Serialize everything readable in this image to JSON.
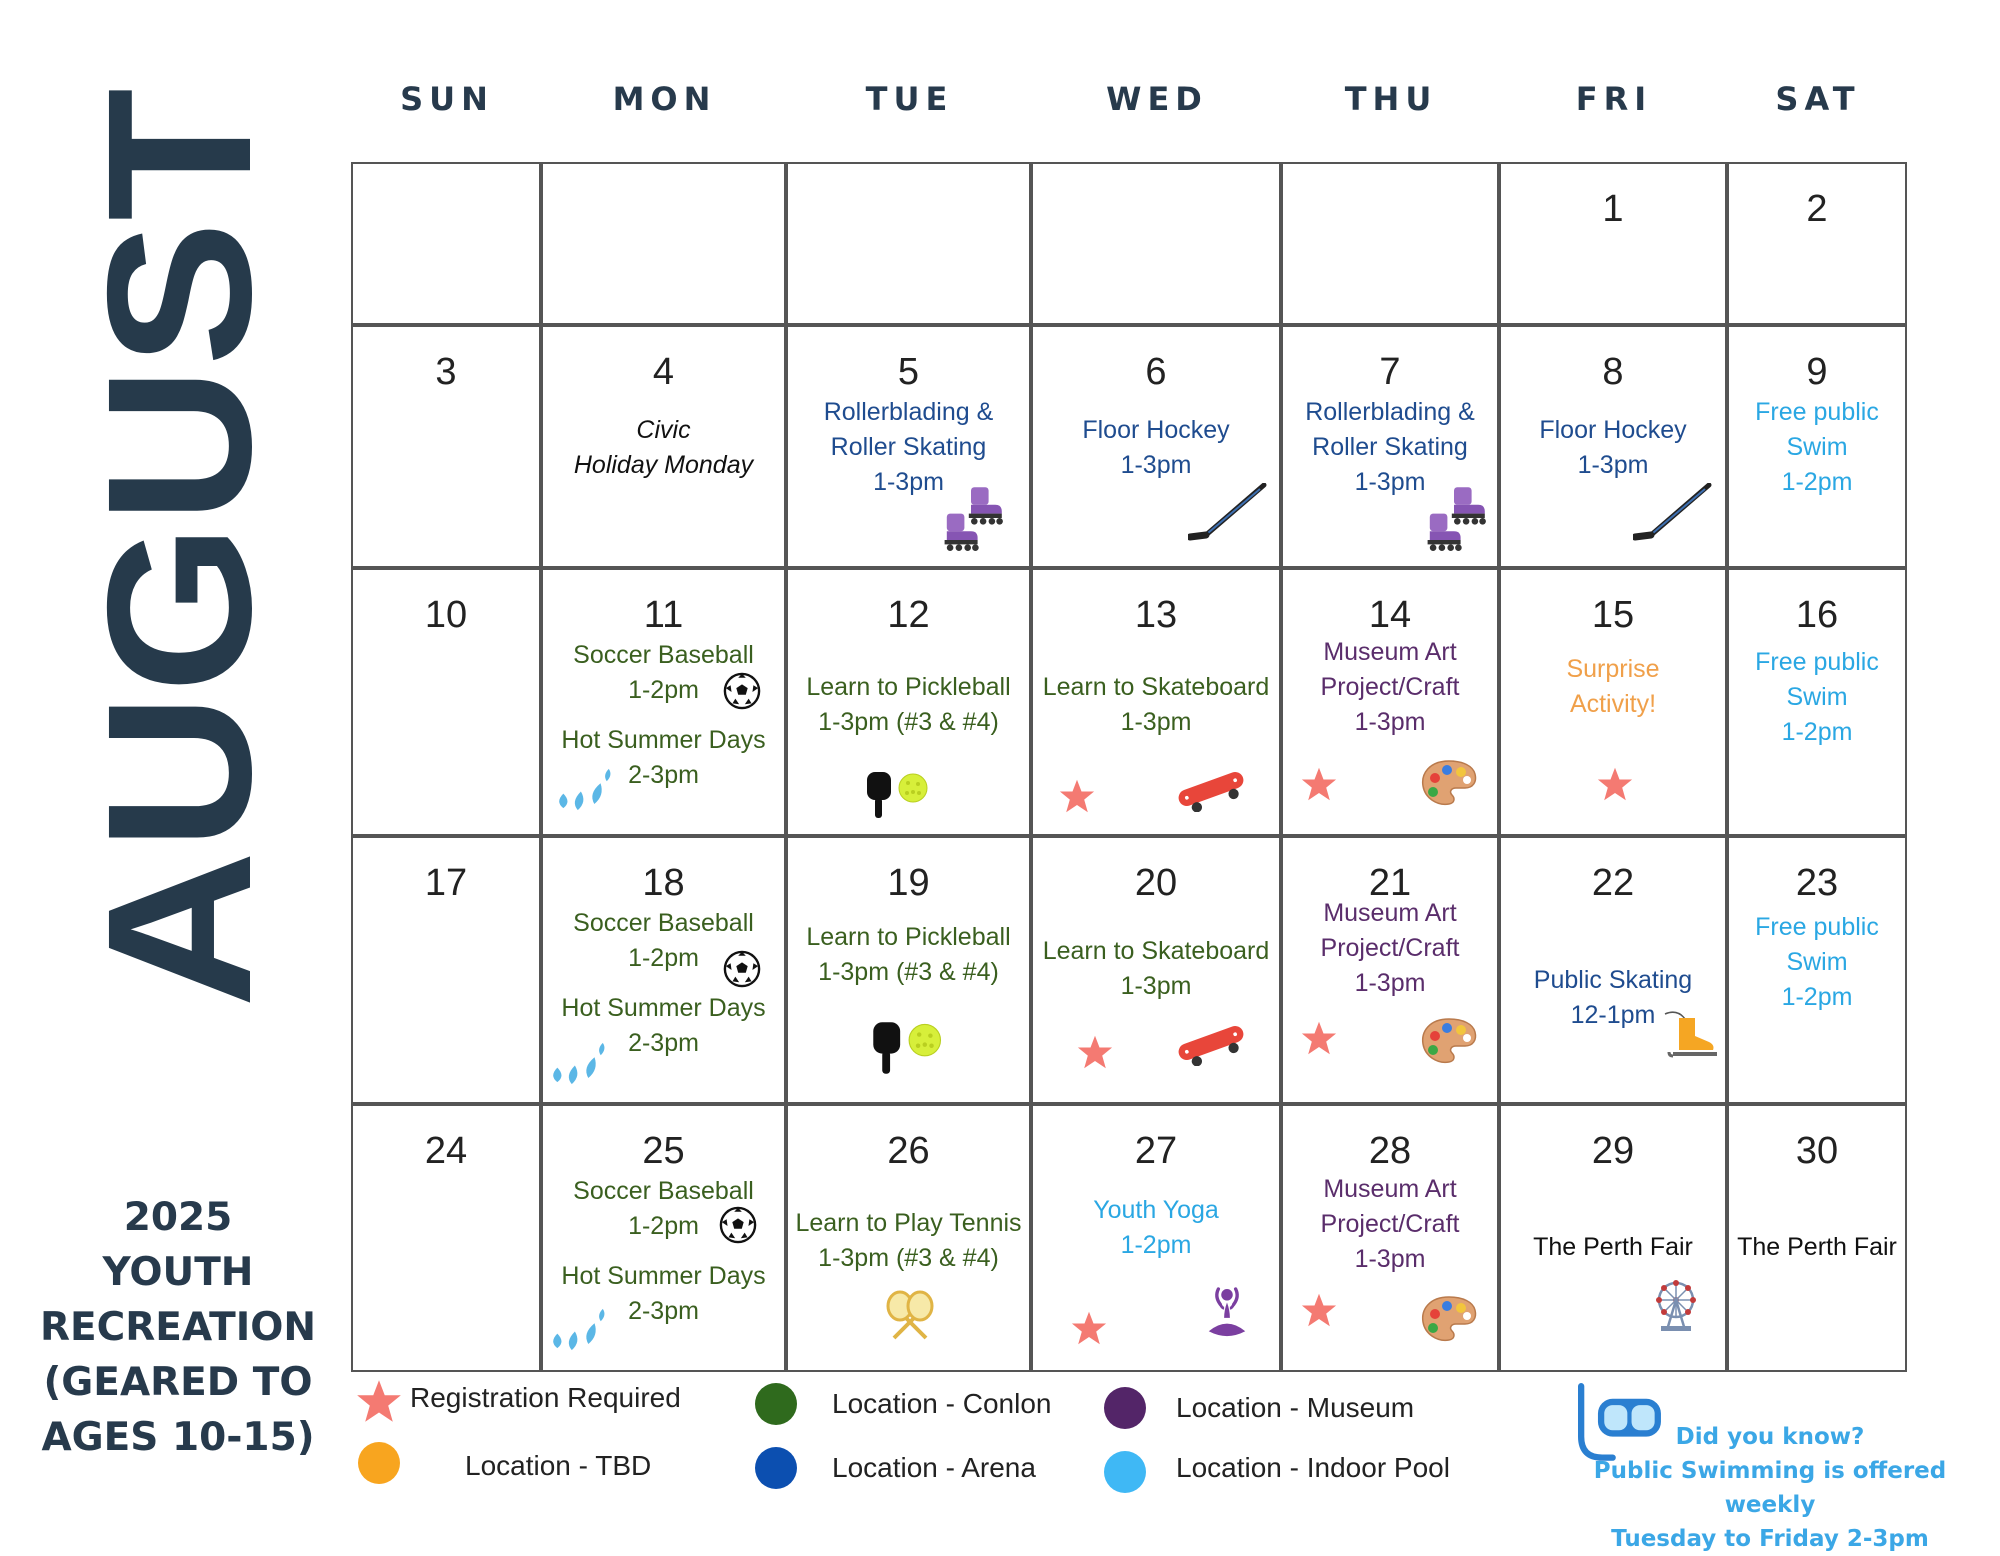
{
  "month": "AUGUST",
  "sidebar": {
    "line1": "2025",
    "line2": "YOUTH",
    "line3": "RECREATION",
    "line4": "(GEARED TO",
    "line5": "AGES 10-15)"
  },
  "weekdays": [
    "SUN",
    "MON",
    "TUE",
    "WED",
    "THU",
    "FRI",
    "SAT"
  ],
  "days": {
    "d1": "1",
    "d2": "2",
    "d3": "3",
    "d4": "4",
    "d5": "5",
    "d6": "6",
    "d7": "7",
    "d8": "8",
    "d9": "9",
    "d10": "10",
    "d11": "11",
    "d12": "12",
    "d13": "13",
    "d14": "14",
    "d15": "15",
    "d16": "16",
    "d17": "17",
    "d18": "18",
    "d19": "19",
    "d20": "20",
    "d21": "21",
    "d22": "22",
    "d23": "23",
    "d24": "24",
    "d25": "25",
    "d26": "26",
    "d27": "27",
    "d28": "28",
    "d29": "29",
    "d30": "30"
  },
  "events": {
    "civic1": "Civic",
    "civic2": "Holiday Monday",
    "roller1": "Rollerblading &",
    "roller2": "Roller Skating",
    "t13": "1-3pm",
    "t12": "1-2pm",
    "t23": "2-3pm",
    "t121": "12-1pm",
    "hockey": "Floor Hockey",
    "swim1": "Free public",
    "swim2": "Swim",
    "soccer": "Soccer Baseball",
    "hot": "Hot Summer Days",
    "pickle": "Learn to Pickleball",
    "t13_34": "1-3pm (#3 & #4)",
    "skate": "Learn to Skateboard",
    "museum1": "Museum Art",
    "museum2": "Project/Craft",
    "surprise1": "Surprise",
    "surprise2": "Activity!",
    "publicskate": "Public Skating",
    "tennis": "Learn to Play Tennis",
    "yoga": "Youth Yoga",
    "fair": "The Perth Fair"
  },
  "legend": {
    "registration": "Registration Required",
    "tbd": "Location - TBD",
    "conlon": "Location - Conlon",
    "arena": "Location - Arena",
    "museum": "Location - Museum",
    "pool": "Location - Indoor Pool"
  },
  "legend_colors": {
    "registration": "#f47a72",
    "tbd": "#f8a51f",
    "conlon": "#2f6a1d",
    "arena": "#0c4fb0",
    "museum": "#532568",
    "pool": "#3fb8f5"
  },
  "tip": {
    "line1": "Did you know?",
    "line2": "Public Swimming is offered weekly",
    "line3": "Tuesday to Friday 2-3pm"
  },
  "icons": [
    "star-icon",
    "soccer-ball-icon",
    "water-drops-icon",
    "roller-skates-icon",
    "hockey-stick-icon",
    "pickleball-paddle-icon",
    "skateboard-icon",
    "paint-palette-icon",
    "ice-skate-icon",
    "tennis-rackets-icon",
    "yoga-figure-icon",
    "ferris-wheel-icon",
    "snorkel-mask-icon"
  ]
}
